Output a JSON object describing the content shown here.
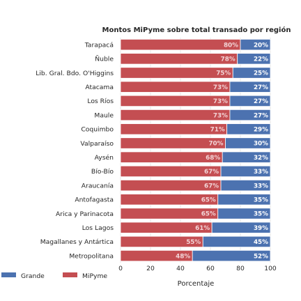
{
  "chart_data": {
    "type": "bar",
    "orientation": "horizontal",
    "stacked": true,
    "title": "Montos MiPyme sobre total transado por región",
    "xlabel": "Porcentaje",
    "ylabel": "",
    "xlim": [
      0,
      100
    ],
    "xticks": [
      "0",
      "20",
      "40",
      "60",
      "80",
      "100"
    ],
    "grid": true,
    "legend_position": "bottom-left",
    "categories": [
      "Tarapacá",
      "Ñuble",
      "Lib. Gral. Bdo. O'Higgins",
      "Atacama",
      "Los Ríos",
      "Maule",
      "Coquimbo",
      "Valparaíso",
      "Aysén",
      "Bío-Bío",
      "Araucanía",
      "Antofagasta",
      "Arica y Parinacota",
      "Los Lagos",
      "Magallanes y Antártica",
      "Metropolitana"
    ],
    "series": [
      {
        "name": "MiPyme",
        "color": "#c44e52",
        "values": [
          80,
          78,
          75,
          73,
          73,
          73,
          71,
          70,
          68,
          67,
          67,
          65,
          65,
          61,
          55,
          48
        ],
        "labels": [
          "80%",
          "78%",
          "75%",
          "73%",
          "73%",
          "73%",
          "71%",
          "70%",
          "68%",
          "67%",
          "67%",
          "65%",
          "65%",
          "61%",
          "55%",
          "48%"
        ]
      },
      {
        "name": "Grande",
        "color": "#4c72b0",
        "values": [
          20,
          22,
          25,
          27,
          27,
          27,
          29,
          30,
          32,
          33,
          33,
          35,
          35,
          39,
          45,
          52
        ],
        "labels": [
          "20%",
          "22%",
          "25%",
          "27%",
          "27%",
          "27%",
          "29%",
          "30%",
          "32%",
          "33%",
          "33%",
          "35%",
          "35%",
          "39%",
          "45%",
          "52%"
        ]
      }
    ]
  }
}
